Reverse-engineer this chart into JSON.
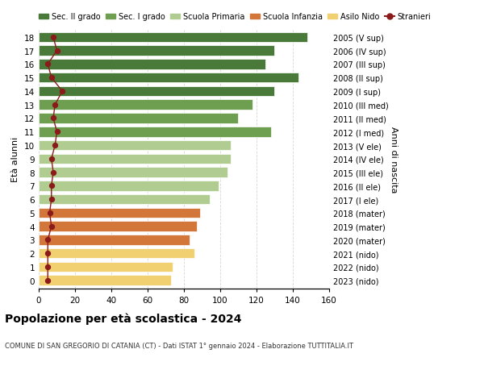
{
  "ages": [
    18,
    17,
    16,
    15,
    14,
    13,
    12,
    11,
    10,
    9,
    8,
    7,
    6,
    5,
    4,
    3,
    2,
    1,
    0
  ],
  "bar_values": [
    148,
    130,
    125,
    143,
    130,
    118,
    110,
    128,
    106,
    106,
    104,
    99,
    94,
    89,
    87,
    83,
    86,
    74,
    73
  ],
  "stranieri_values": [
    8,
    10,
    5,
    7,
    13,
    9,
    8,
    10,
    9,
    7,
    8,
    7,
    7,
    6,
    7,
    5,
    5,
    5,
    5
  ],
  "right_labels": [
    "2005 (V sup)",
    "2006 (IV sup)",
    "2007 (III sup)",
    "2008 (II sup)",
    "2009 (I sup)",
    "2010 (III med)",
    "2011 (II med)",
    "2012 (I med)",
    "2013 (V ele)",
    "2014 (IV ele)",
    "2015 (III ele)",
    "2016 (II ele)",
    "2017 (I ele)",
    "2018 (mater)",
    "2019 (mater)",
    "2020 (mater)",
    "2021 (nido)",
    "2022 (nido)",
    "2023 (nido)"
  ],
  "bar_colors": [
    "#4a7a3a",
    "#4a7a3a",
    "#4a7a3a",
    "#4a7a3a",
    "#4a7a3a",
    "#6e9e50",
    "#6e9e50",
    "#6e9e50",
    "#b0cc90",
    "#b0cc90",
    "#b0cc90",
    "#b0cc90",
    "#b0cc90",
    "#d2763a",
    "#d2763a",
    "#d2763a",
    "#f0d070",
    "#f0d070",
    "#f0d070"
  ],
  "legend_labels": [
    "Sec. II grado",
    "Sec. I grado",
    "Scuola Primaria",
    "Scuola Infanzia",
    "Asilo Nido",
    "Stranieri"
  ],
  "legend_colors": [
    "#4a7a3a",
    "#6e9e50",
    "#b0cc90",
    "#d2763a",
    "#f0d070",
    "#8b1a1a"
  ],
  "title": "Popolazione per età scolastica - 2024",
  "subtitle": "COMUNE DI SAN GREGORIO DI CATANIA (CT) - Dati ISTAT 1° gennaio 2024 - Elaborazione TUTTITALIA.IT",
  "ylabel": "Età alunni",
  "right_ylabel": "Anni di nascita",
  "xlim": [
    0,
    160
  ],
  "background_color": "#ffffff",
  "bar_height": 0.75,
  "stranieri_color": "#8b1a1a",
  "grid_color": "#cccccc"
}
